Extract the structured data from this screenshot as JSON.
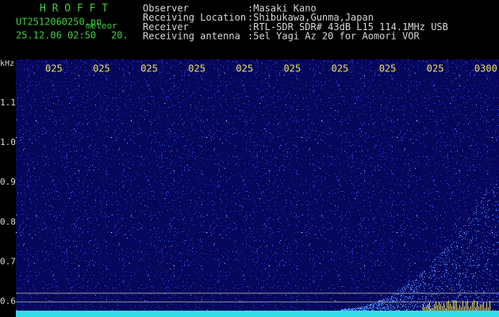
{
  "app": {
    "name": "H R O F F T",
    "file": "UT2512060250.pn",
    "mode": "meteor",
    "datetime": "25.12.06 02:50",
    "interval": "20."
  },
  "info": {
    "rows": [
      {
        "label": "Observer",
        "value": ":Masaki Kano"
      },
      {
        "label": "Receiving Location",
        "value": ":Shibukawa,Gunma,Japan"
      },
      {
        "label": "Receiver",
        "value": ":RTL-SDR SDR# 43dB L15 114.1MHz USB"
      },
      {
        "label": "Receiving antenna",
        "value": ":5el Yagi Az 20 for Aomori VOR"
      }
    ]
  },
  "plot": {
    "unit": "kHz",
    "time_labels": [
      "025",
      "025",
      "025",
      "025",
      "025",
      "025",
      "025",
      "025",
      "025",
      "0300"
    ],
    "freq_labels": [
      "1.1",
      "1.0",
      "0.9",
      "0.8",
      "0.7",
      "0.6"
    ]
  }
}
